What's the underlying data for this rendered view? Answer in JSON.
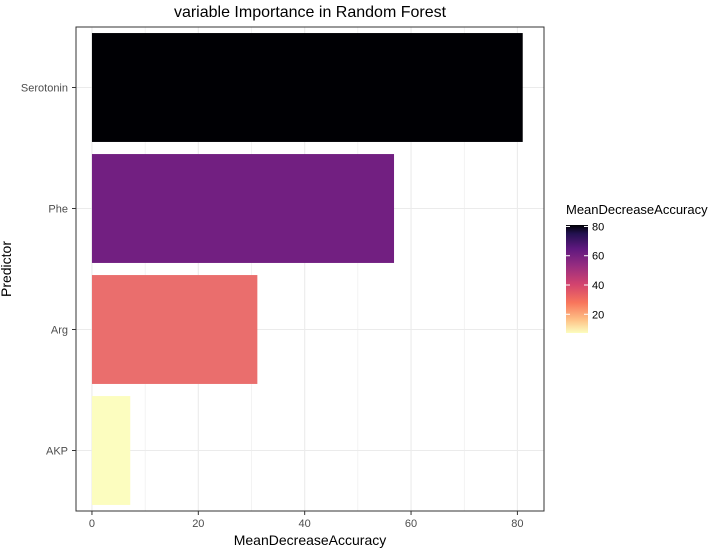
{
  "chart_data": {
    "type": "bar",
    "orientation": "horizontal",
    "title": "variable Importance in Random Forest",
    "xlabel": "MeanDecreaseAccuracy",
    "ylabel": "Predictor",
    "categories": [
      "Serotonin",
      "Phe",
      "Arg",
      "AKP"
    ],
    "values": [
      81,
      56.8,
      31.1,
      7.2
    ],
    "xlim": [
      -3,
      85
    ],
    "xticks": [
      0,
      20,
      40,
      60,
      80
    ],
    "grid": true,
    "colorscale": {
      "name": "magma",
      "range": [
        7.2,
        81
      ],
      "colors": {
        "Serotonin": "#000004",
        "Phe": "#721f81",
        "Arg": "#ea6e6d",
        "AKP": "#fcfdbf"
      }
    },
    "legend": {
      "title": "MeanDecreaseAccuracy",
      "position": "right",
      "ticks": [
        80,
        60,
        40,
        20
      ]
    }
  }
}
